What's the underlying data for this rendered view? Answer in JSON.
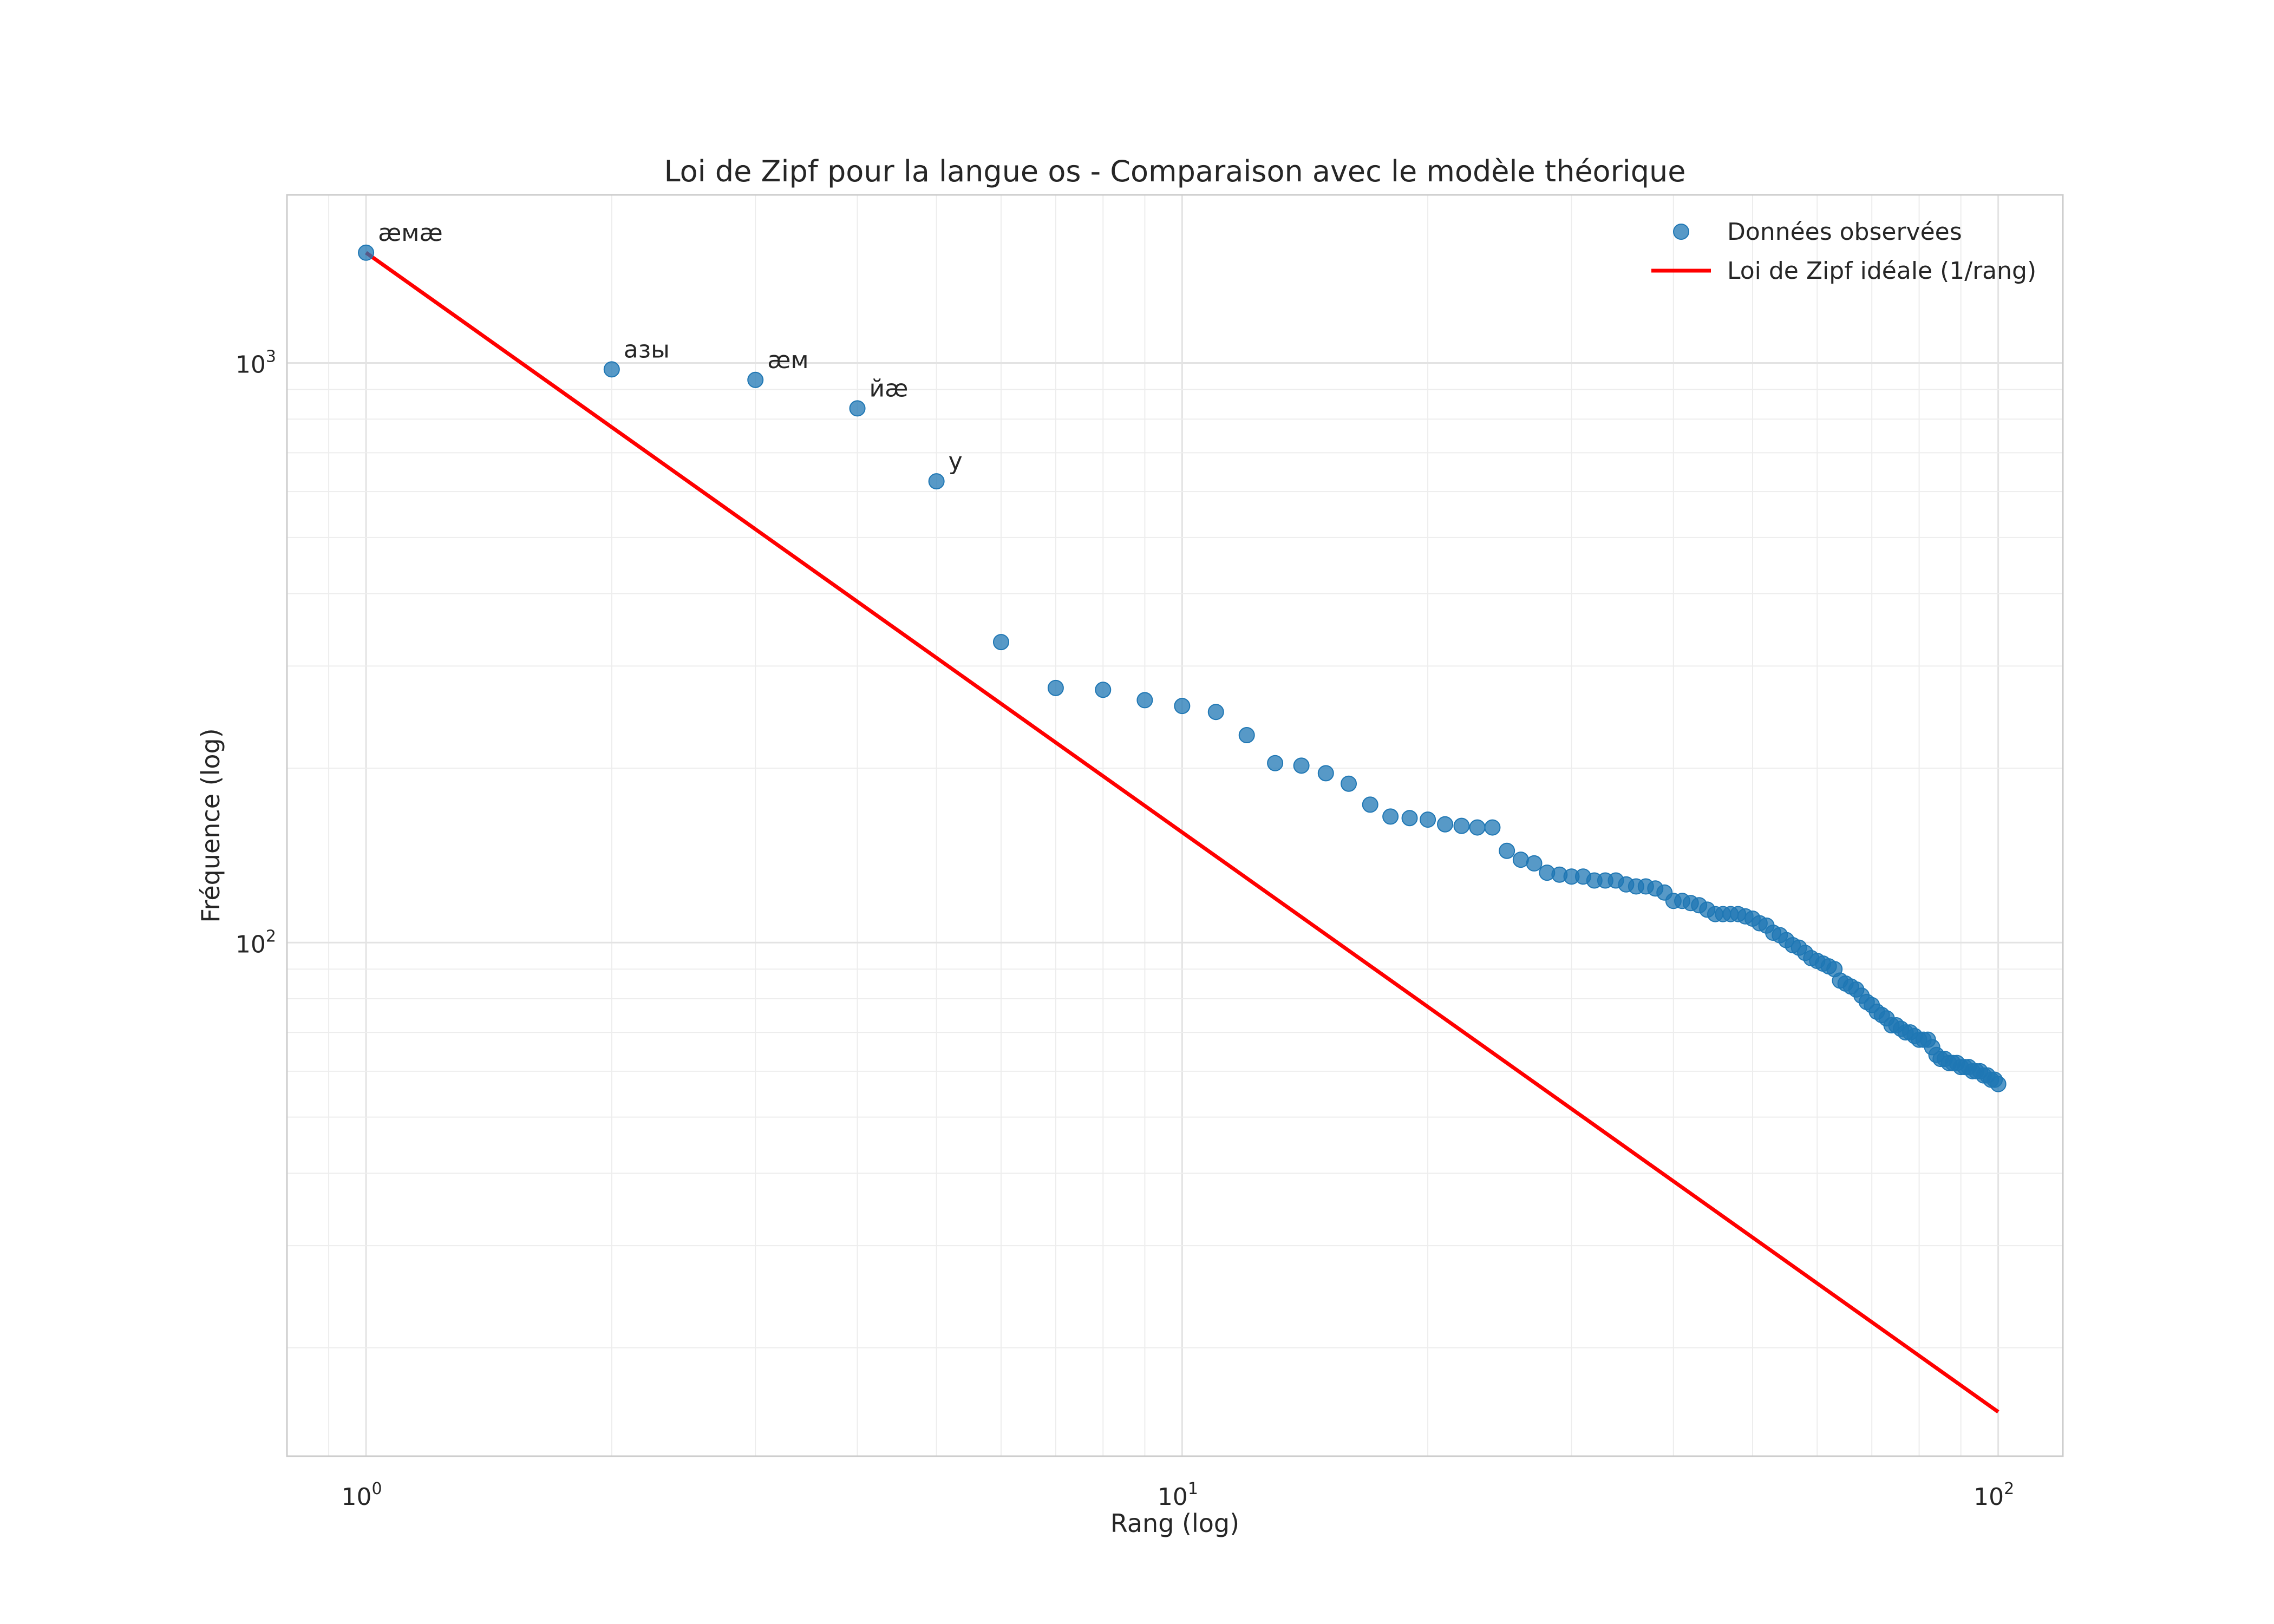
{
  "chart_data": {
    "type": "scatter",
    "title": "Loi de Zipf pour la langue os - Comparaison avec le modèle théorique",
    "xlabel": "Rang (log)",
    "ylabel": "Fréquence (log)",
    "xscale": "log",
    "yscale": "log",
    "xlim": [
      0.8,
      120
    ],
    "ylim": [
      13,
      1950
    ],
    "grid": true,
    "legend_position": "top-right",
    "x_ticks": [
      {
        "value": 1,
        "base": "10",
        "exp": "0"
      },
      {
        "value": 10,
        "base": "10",
        "exp": "1"
      },
      {
        "value": 100,
        "base": "10",
        "exp": "2"
      }
    ],
    "y_ticks": [
      {
        "value": 100,
        "base": "10",
        "exp": "2"
      },
      {
        "value": 1000,
        "base": "10",
        "exp": "3"
      }
    ],
    "series": [
      {
        "name": "Données observées",
        "kind": "scatter",
        "color": "#1f77b4",
        "x": [
          1,
          2,
          3,
          4,
          5,
          6,
          7,
          8,
          9,
          10,
          11,
          12,
          13,
          14,
          15,
          16,
          17,
          18,
          19,
          20,
          21,
          22,
          23,
          24,
          25,
          26,
          27,
          28,
          29,
          30,
          31,
          32,
          33,
          34,
          35,
          36,
          37,
          38,
          39,
          40,
          41,
          42,
          43,
          44,
          45,
          46,
          47,
          48,
          49,
          50,
          51,
          52,
          53,
          54,
          55,
          56,
          57,
          58,
          59,
          60,
          61,
          62,
          63,
          64,
          65,
          66,
          67,
          68,
          69,
          70,
          71,
          72,
          73,
          74,
          75,
          76,
          77,
          78,
          79,
          80,
          81,
          82,
          83,
          84,
          85,
          86,
          87,
          88,
          89,
          90,
          91,
          92,
          93,
          94,
          95,
          96,
          97,
          98,
          99,
          100
        ],
        "y": [
          1550,
          975,
          935,
          835,
          625,
          330,
          275,
          273,
          262,
          256,
          250,
          228,
          204,
          202,
          196,
          188,
          173,
          165,
          164,
          163,
          160,
          159,
          158,
          158,
          144,
          139,
          137,
          132,
          131,
          130,
          130,
          128,
          128,
          128,
          126,
          125,
          125,
          124,
          122,
          118,
          118,
          117,
          116,
          114,
          112,
          112,
          112,
          112,
          111,
          110,
          108,
          107,
          104,
          103,
          101,
          99,
          98,
          96,
          94,
          93,
          92,
          91,
          90,
          86,
          85,
          84,
          83,
          81,
          79,
          78,
          76,
          75,
          74,
          72,
          72,
          71,
          70,
          70,
          69,
          68,
          68,
          68,
          66,
          64,
          63,
          63,
          62,
          62,
          62,
          61,
          61,
          61,
          60,
          60,
          60,
          59,
          59,
          58,
          58,
          57
        ]
      },
      {
        "name": "Loi de Zipf idéale (1/rang)",
        "kind": "line",
        "color": "#ff0000",
        "x": [
          1,
          100
        ],
        "y": [
          1550,
          15.5
        ]
      }
    ],
    "annotations": [
      {
        "text": "æмæ",
        "x": 1,
        "y": 1550
      },
      {
        "text": "азы",
        "x": 2,
        "y": 975
      },
      {
        "text": "æм",
        "x": 3,
        "y": 935
      },
      {
        "text": "йæ",
        "x": 4,
        "y": 835
      },
      {
        "text": "у",
        "x": 5,
        "y": 625
      }
    ]
  }
}
